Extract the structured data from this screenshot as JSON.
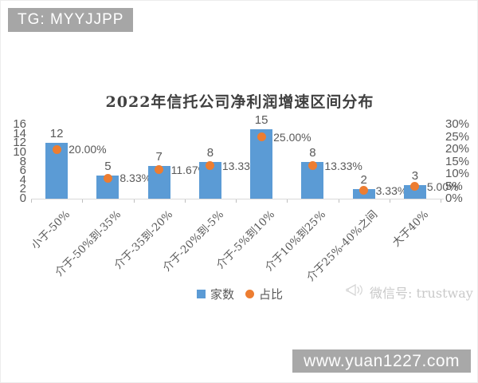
{
  "watermark_top": {
    "label": "TG: MYYJJPP"
  },
  "chart_data": {
    "type": "bar",
    "title": "2022年信托公司净利润增速区间分布",
    "categories": [
      "小于-50%",
      "介于-50%到-35%",
      "介于-35到-20%",
      "介于-20%到-5%",
      "介于-5%到10%",
      "介于10%到25%",
      "介于25%-40%之间",
      "大于40%"
    ],
    "series": [
      {
        "name": "家数",
        "type": "bar",
        "axis": "left",
        "color": "#5b9bd5",
        "values": [
          12,
          5,
          7,
          8,
          15,
          8,
          2,
          3
        ],
        "labels": [
          "12",
          "5",
          "7",
          "8",
          "15",
          "8",
          "2",
          "3"
        ]
      },
      {
        "name": "占比",
        "type": "scatter",
        "axis": "right",
        "color": "#ed7d31",
        "values": [
          20.0,
          8.33,
          11.67,
          13.33,
          25.0,
          13.33,
          3.33,
          5.0
        ],
        "labels": [
          "20.00%",
          "8.33%",
          "11.67%",
          "13.33%",
          "25.00%",
          "13.33%",
          "3.33%",
          "5.00%"
        ]
      }
    ],
    "left_axis": {
      "min": 0,
      "max": 16,
      "step": 2,
      "ticks": [
        "0",
        "2",
        "4",
        "6",
        "8",
        "10",
        "12",
        "14",
        "16"
      ]
    },
    "right_axis": {
      "min": 0,
      "max": 30,
      "step": 5,
      "ticks": [
        "0%",
        "5%",
        "10%",
        "15%",
        "20%",
        "25%",
        "30%"
      ]
    },
    "grid": false,
    "legend_position": "bottom"
  },
  "legend": {
    "items": [
      {
        "label": "家数",
        "color": "#5b9bd5",
        "marker": "square"
      },
      {
        "label": "占比",
        "color": "#ed7d31",
        "marker": "circle"
      }
    ]
  },
  "wechat_watermark": {
    "icon": "megaphone-icon",
    "label": "微信号: trustway"
  },
  "watermark_bottom": {
    "label": "www.yuan1227.com"
  },
  "colors": {
    "bar": "#5b9bd5",
    "dot": "#ed7d31",
    "axis_text": "#595959",
    "badge_bg": "#a6a6a6",
    "title_text": "#404040"
  }
}
